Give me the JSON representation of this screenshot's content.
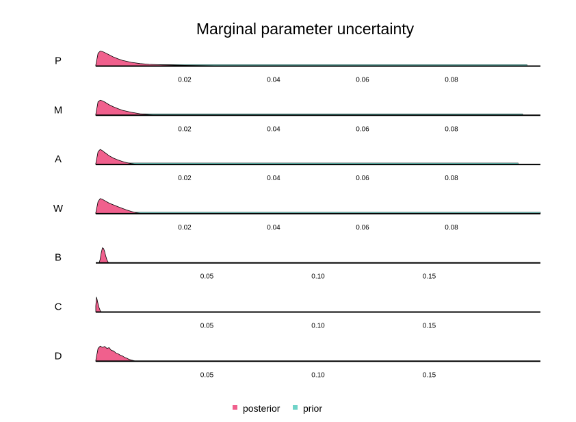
{
  "chart_data": {
    "type": "area",
    "title": "Marginal parameter uncertainty",
    "legend": {
      "position": "bottom",
      "items": [
        {
          "label": "posterior",
          "color": "#f0608d"
        },
        {
          "label": "prior",
          "color": "#6fd3c8"
        }
      ]
    },
    "panels": [
      {
        "label": "P",
        "xlim": [
          0.0,
          0.1
        ],
        "ticks": [
          0.02,
          0.04,
          0.06,
          0.08
        ],
        "tick_labels": [
          "0.02",
          "0.04",
          "0.06",
          "0.08"
        ],
        "prior_extent": [
          0.0,
          0.097
        ],
        "posterior": {
          "x": [
            0.0,
            0.0005,
            0.001,
            0.0015,
            0.002,
            0.003,
            0.004,
            0.005,
            0.006,
            0.008,
            0.01,
            0.012,
            0.015,
            0.02,
            0.025,
            0.03,
            0.04
          ],
          "y": [
            0.05,
            0.85,
            1.0,
            0.97,
            0.9,
            0.75,
            0.6,
            0.48,
            0.38,
            0.25,
            0.17,
            0.12,
            0.08,
            0.05,
            0.03,
            0.015,
            0.0
          ]
        }
      },
      {
        "label": "M",
        "xlim": [
          0.0,
          0.1
        ],
        "ticks": [
          0.02,
          0.04,
          0.06,
          0.08
        ],
        "tick_labels": [
          "0.02",
          "0.04",
          "0.06",
          "0.08"
        ],
        "prior_extent": [
          0.0,
          0.096
        ],
        "posterior": {
          "x": [
            0.0,
            0.0005,
            0.001,
            0.0015,
            0.002,
            0.003,
            0.004,
            0.005,
            0.006,
            0.008,
            0.01,
            0.012,
            0.0135
          ],
          "y": [
            0.05,
            0.9,
            1.0,
            0.96,
            0.88,
            0.7,
            0.56,
            0.44,
            0.33,
            0.2,
            0.1,
            0.04,
            0.0
          ]
        }
      },
      {
        "label": "A",
        "xlim": [
          0.0,
          0.1
        ],
        "ticks": [
          0.02,
          0.04,
          0.06,
          0.08
        ],
        "tick_labels": [
          "0.02",
          "0.04",
          "0.06",
          "0.08"
        ],
        "prior_extent": [
          0.0,
          0.095
        ],
        "posterior": {
          "x": [
            0.0,
            0.0005,
            0.001,
            0.0015,
            0.002,
            0.003,
            0.004,
            0.005,
            0.006,
            0.007,
            0.008,
            0.0095
          ],
          "y": [
            0.05,
            0.85,
            1.0,
            0.92,
            0.8,
            0.58,
            0.42,
            0.3,
            0.2,
            0.12,
            0.06,
            0.0
          ]
        }
      },
      {
        "label": "W",
        "xlim": [
          0.0,
          0.1
        ],
        "ticks": [
          0.02,
          0.04,
          0.06,
          0.08
        ],
        "tick_labels": [
          "0.02",
          "0.04",
          "0.06",
          "0.08"
        ],
        "prior_extent": [
          0.0,
          0.1
        ],
        "posterior": {
          "x": [
            0.0,
            0.0005,
            0.001,
            0.0015,
            0.002,
            0.003,
            0.004,
            0.005,
            0.006,
            0.007,
            0.008,
            0.009,
            0.0105
          ],
          "y": [
            0.05,
            0.8,
            1.0,
            0.95,
            0.87,
            0.7,
            0.58,
            0.46,
            0.35,
            0.24,
            0.15,
            0.07,
            0.0
          ]
        }
      },
      {
        "label": "B",
        "xlim": [
          0.0,
          0.2
        ],
        "ticks": [
          0.05,
          0.1,
          0.15
        ],
        "tick_labels": [
          "0.05",
          "0.10",
          "0.15"
        ],
        "prior_extent": [
          0.0,
          0.0
        ],
        "posterior": {
          "x": [
            0.0015,
            0.002,
            0.0025,
            0.003,
            0.0035,
            0.004,
            0.0045,
            0.005,
            0.0055,
            0.006
          ],
          "y": [
            0.0,
            0.25,
            0.7,
            1.0,
            0.95,
            0.75,
            0.45,
            0.2,
            0.06,
            0.0
          ]
        }
      },
      {
        "label": "C",
        "xlim": [
          0.0,
          0.2
        ],
        "ticks": [
          0.05,
          0.1,
          0.15
        ],
        "tick_labels": [
          "0.05",
          "0.10",
          "0.15"
        ],
        "prior_extent": [
          0.0,
          0.0
        ],
        "posterior": {
          "x": [
            0.0,
            0.0003,
            0.0006,
            0.001,
            0.0015,
            0.002,
            0.0025
          ],
          "y": [
            0.4,
            1.0,
            0.85,
            0.55,
            0.28,
            0.1,
            0.0
          ]
        }
      },
      {
        "label": "D",
        "xlim": [
          0.0,
          0.2
        ],
        "ticks": [
          0.05,
          0.1,
          0.15
        ],
        "tick_labels": [
          "0.05",
          "0.10",
          "0.15"
        ],
        "prior_extent": [
          0.0,
          0.0
        ],
        "posterior": {
          "x": [
            0.0,
            0.001,
            0.002,
            0.003,
            0.004,
            0.005,
            0.006,
            0.007,
            0.008,
            0.009,
            0.01,
            0.011,
            0.012,
            0.013,
            0.014,
            0.015,
            0.016,
            0.017,
            0.018
          ],
          "y": [
            0.05,
            0.85,
            1.0,
            0.92,
            0.98,
            0.85,
            0.9,
            0.72,
            0.68,
            0.55,
            0.5,
            0.4,
            0.35,
            0.25,
            0.2,
            0.12,
            0.08,
            0.04,
            0.0
          ]
        }
      }
    ]
  }
}
